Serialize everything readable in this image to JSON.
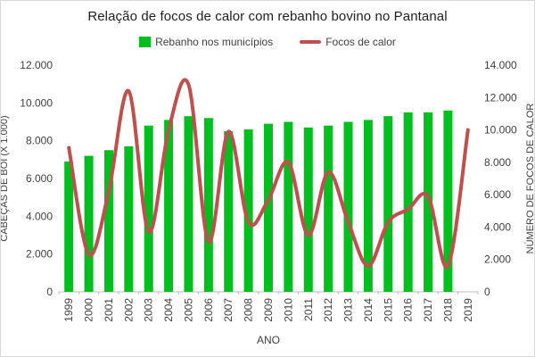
{
  "chart": {
    "title": "Relação de focos de calor com rebanho bovino no Pantanal",
    "legend": {
      "rebanho_label": "Rebanho nos municípios",
      "focos_label": "Focos de calor"
    },
    "colors": {
      "bar": "#00bf1f",
      "line": "#c0504d",
      "axis_line": "#bfbfbf",
      "tick_text": "#404040",
      "title_text": "#1f1f1f"
    }
  },
  "chart_data": {
    "type": "bar+line combo",
    "title": "Relação de focos de calor com rebanho bovino no Pantanal",
    "grid": false,
    "legend_position": "top",
    "categories": [
      "1999",
      "2000",
      "2001",
      "2002",
      "2003",
      "2004",
      "2005",
      "2006",
      "2007",
      "2008",
      "2009",
      "2010",
      "2011",
      "2012",
      "2013",
      "2014",
      "2015",
      "2016",
      "2017",
      "2018",
      "2019"
    ],
    "series": [
      {
        "name": "Rebanho nos municípios",
        "type": "bar",
        "axis": "left",
        "color": "#00bf1f",
        "values": [
          6900,
          7200,
          7500,
          7700,
          8800,
          9100,
          9300,
          9200,
          8500,
          8600,
          8900,
          9000,
          8700,
          8800,
          9000,
          9100,
          9300,
          9500,
          9500,
          9600,
          null
        ]
      },
      {
        "name": "Focos de calor",
        "type": "line",
        "axis": "right",
        "color": "#c0504d",
        "values": [
          8900,
          2300,
          6200,
          12400,
          3700,
          10000,
          12800,
          3100,
          9900,
          4300,
          5700,
          8000,
          3500,
          7400,
          4300,
          1600,
          4300,
          5100,
          5900,
          1600,
          10000
        ]
      }
    ],
    "left_axis": {
      "title": "CABEÇAS DE BOI (X 1.000)",
      "min": 0,
      "max": 12000,
      "step": 2000,
      "tick_labels": [
        "0",
        "2.000",
        "4.000",
        "6.000",
        "8.000",
        "10.000",
        "12.000"
      ]
    },
    "right_axis": {
      "title": "NÚMERO DE FOCOS DE CALOR",
      "min": 0,
      "max": 14000,
      "step": 2000,
      "tick_labels": [
        "0",
        "2.000",
        "4.000",
        "6.000",
        "8.000",
        "10.000",
        "12.000",
        "14.000"
      ]
    },
    "x_axis": {
      "title": "ANO"
    }
  }
}
